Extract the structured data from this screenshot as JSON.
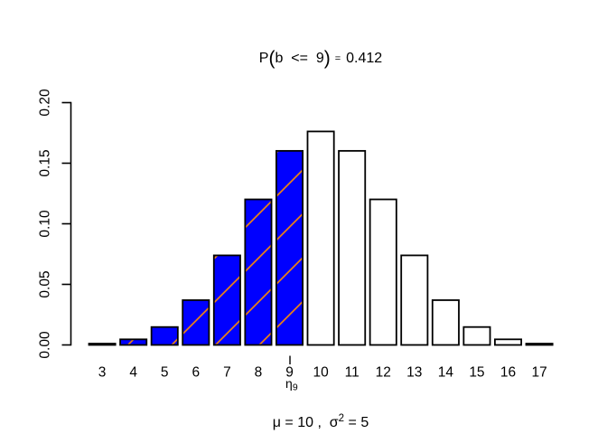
{
  "chart_data": {
    "type": "bar",
    "title": {
      "prefix": "P",
      "open_paren": "(",
      "event": "b  <=  9",
      "close_paren": ")",
      "equals": "=",
      "value": "0.412"
    },
    "subtitle": {
      "lead": "μ = 10 ,  σ",
      "sup": "2",
      "rest": " = 5"
    },
    "categories": [
      "3",
      "4",
      "5",
      "6",
      "7",
      "8",
      "9",
      "10",
      "11",
      "12",
      "13",
      "14",
      "15",
      "16",
      "17"
    ],
    "values": [
      0.0010872,
      0.0046206,
      0.0147858,
      0.0369644,
      0.0739288,
      0.1201344,
      0.1601791,
      0.1761971,
      0.1601791,
      0.1201344,
      0.0739288,
      0.0369644,
      0.0147858,
      0.0046206,
      0.0010872
    ],
    "yticks": [
      "0.00",
      "0.05",
      "0.10",
      "0.15",
      "0.20"
    ],
    "ylim": [
      0.0,
      0.2
    ],
    "xlabel": "",
    "ylabel": "",
    "grid": false,
    "legend": null,
    "highlight": {
      "upto_category": "9",
      "fill": "#0000FF",
      "hatch_color": "#FF8C00",
      "hatch_angle_deg": 45
    },
    "bar_fill": "#FFFFFF",
    "bar_border": "#000000",
    "marker": {
      "category": "9",
      "label_base": "η",
      "label_sub": "9"
    }
  }
}
